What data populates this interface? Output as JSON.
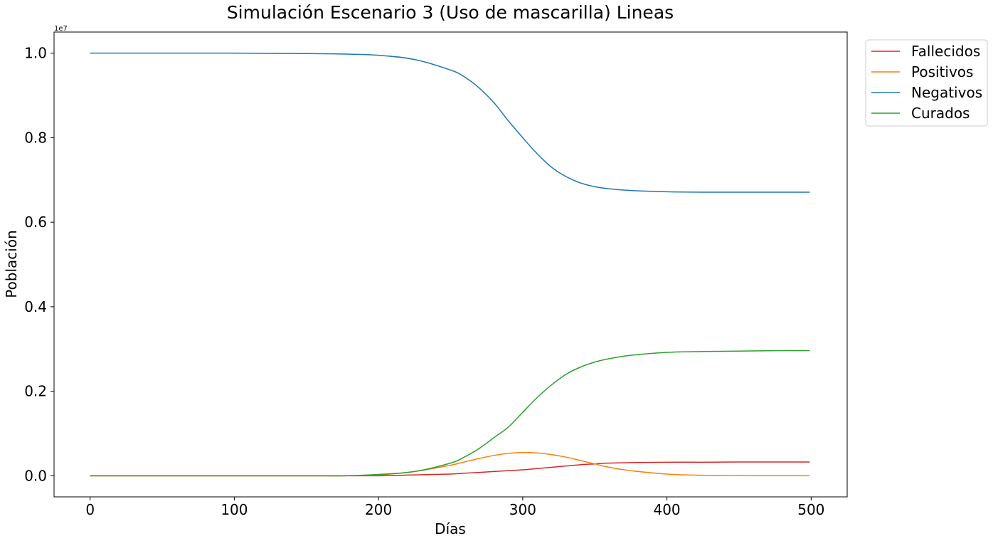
{
  "chart_data": {
    "type": "line",
    "title": "Simulación Escenario 3 (Uso de mascarilla) Lineas",
    "xlabel": "Días",
    "ylabel": "Población",
    "y_offset_label": "1e7",
    "xlim": [
      -25,
      525
    ],
    "ylim": [
      -0.05,
      1.05
    ],
    "xticks": [
      0,
      100,
      200,
      300,
      400,
      500
    ],
    "xtick_labels": [
      "0",
      "100",
      "200",
      "300",
      "400",
      "500"
    ],
    "yticks": [
      0.0,
      0.2,
      0.4,
      0.6,
      0.8,
      1.0
    ],
    "ytick_labels": [
      "0.0",
      "0.2",
      "0.4",
      "0.6",
      "0.8",
      "1.0"
    ],
    "grid": false,
    "legend": "outside-top-right",
    "x": [
      0,
      50,
      100,
      150,
      175,
      200,
      225,
      250,
      260,
      270,
      280,
      290,
      300,
      310,
      320,
      330,
      340,
      350,
      360,
      375,
      400,
      425,
      450,
      475,
      500
    ],
    "series": [
      {
        "name": "Fallecidos",
        "color": "#d62728",
        "values": [
          0.0,
          0.0,
          0.0,
          0.0,
          0.0,
          0.0,
          0.002,
          0.004,
          0.006,
          0.008,
          0.01,
          0.012,
          0.014,
          0.017,
          0.02,
          0.023,
          0.026,
          0.028,
          0.03,
          0.031,
          0.032,
          0.032,
          0.0325,
          0.0325,
          0.0325
        ]
      },
      {
        "name": "Positivos",
        "color": "#ff7f0e",
        "values": [
          0.0,
          0.0,
          0.0,
          0.0,
          0.0,
          0.002,
          0.01,
          0.025,
          0.033,
          0.041,
          0.048,
          0.053,
          0.055,
          0.054,
          0.05,
          0.044,
          0.036,
          0.028,
          0.02,
          0.012,
          0.004,
          0.001,
          0.0003,
          0.0001,
          0.0
        ]
      },
      {
        "name": "Negativos",
        "color": "#1f77b4",
        "values": [
          1.0,
          1.0,
          1.0,
          0.999,
          0.998,
          0.995,
          0.985,
          0.96,
          0.943,
          0.917,
          0.883,
          0.84,
          0.8,
          0.762,
          0.73,
          0.708,
          0.693,
          0.684,
          0.679,
          0.675,
          0.672,
          0.671,
          0.671,
          0.671,
          0.671
        ]
      },
      {
        "name": "Curados",
        "color": "#2ca02c",
        "values": [
          0.0,
          0.0,
          0.0,
          0.0,
          0.0,
          0.003,
          0.01,
          0.03,
          0.045,
          0.065,
          0.09,
          0.115,
          0.15,
          0.185,
          0.215,
          0.24,
          0.257,
          0.269,
          0.277,
          0.285,
          0.292,
          0.294,
          0.295,
          0.296,
          0.296
        ]
      }
    ]
  }
}
